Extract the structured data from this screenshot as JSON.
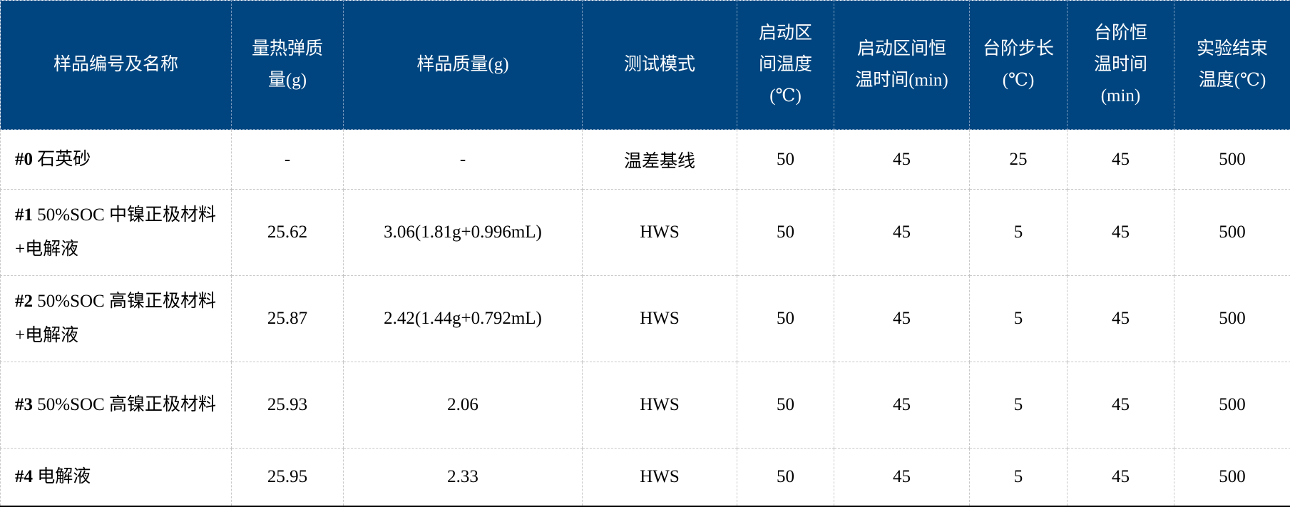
{
  "header_color": "#00457f",
  "headers": [
    "样品编号及名称",
    "量热弹质量(g)",
    "样品质量(g)",
    "测试模式",
    "启动区间温度(℃)",
    "启动区间恒温时间(min)",
    "台阶步长(℃)",
    "台阶恒温时间(min)",
    "实验结束温度(℃)"
  ],
  "rows": [
    {
      "id": "#0",
      "name": "石英砂",
      "bomb_mass": "-",
      "sample_mass": "-",
      "mode": "温差基线",
      "start_temp": "50",
      "start_hold": "45",
      "step": "25",
      "step_hold": "45",
      "end_temp": "500"
    },
    {
      "id": "#1",
      "name": "50%SOC 中镍正极材料+电解液",
      "bomb_mass": "25.62",
      "sample_mass": "3.06(1.81g+0.996mL)",
      "mode": "HWS",
      "start_temp": "50",
      "start_hold": "45",
      "step": "5",
      "step_hold": "45",
      "end_temp": "500"
    },
    {
      "id": "#2",
      "name": "50%SOC 高镍正极材料+电解液",
      "bomb_mass": "25.87",
      "sample_mass": "2.42(1.44g+0.792mL)",
      "mode": "HWS",
      "start_temp": "50",
      "start_hold": "45",
      "step": "5",
      "step_hold": "45",
      "end_temp": "500"
    },
    {
      "id": "#3",
      "name": "50%SOC 高镍正极材料",
      "bomb_mass": "25.93",
      "sample_mass": "2.06",
      "mode": "HWS",
      "start_temp": "50",
      "start_hold": "45",
      "step": "5",
      "step_hold": "45",
      "end_temp": "500"
    },
    {
      "id": "#4",
      "name": "电解液",
      "bomb_mass": "25.95",
      "sample_mass": "2.33",
      "mode": "HWS",
      "start_temp": "50",
      "start_hold": "45",
      "step": "5",
      "step_hold": "45",
      "end_temp": "500"
    }
  ]
}
